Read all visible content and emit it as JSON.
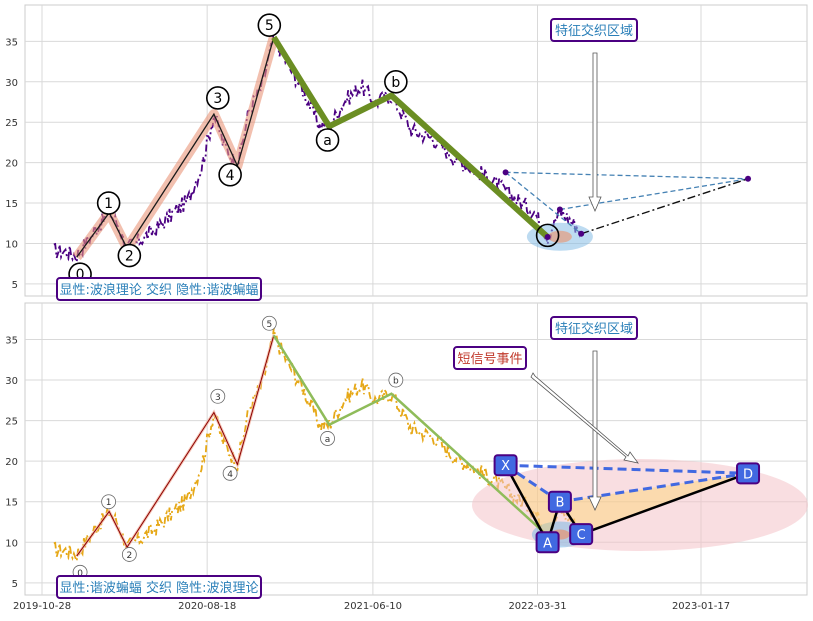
{
  "chart_data": [
    {
      "type": "line",
      "panel": "top",
      "ylim": [
        3.5,
        39.5
      ],
      "y_ticks": [
        5,
        10,
        15,
        20,
        25,
        30,
        35
      ],
      "grid": true,
      "colors": {
        "price": "#4b0082",
        "impulse": "#e9967a",
        "corrective": "#6b8e23",
        "projection": "#4682b4"
      },
      "wave_labels": [
        {
          "label": "0",
          "date": "2020-01-04",
          "y": 6.2
        },
        {
          "label": "1",
          "date": "2020-02-24",
          "y": 15.0
        },
        {
          "label": "2",
          "date": "2020-04-01",
          "y": 8.5
        },
        {
          "label": "3",
          "date": "2020-09-06",
          "y": 28.0
        },
        {
          "label": "4",
          "date": "2020-09-28",
          "y": 18.5
        },
        {
          "label": "5",
          "date": "2020-12-07",
          "y": 37.0
        },
        {
          "label": "a",
          "date": "2021-03-21",
          "y": 22.8
        },
        {
          "label": "b",
          "date": "2021-07-21",
          "y": 30.0
        },
        {
          "label": "",
          "date": "2022-04-18",
          "y": 11.0
        }
      ],
      "impulse_path": [
        {
          "date": "2019-12-29",
          "y": 8.3
        },
        {
          "date": "2020-02-25",
          "y": 13.8
        },
        {
          "date": "2020-03-28",
          "y": 9.4
        },
        {
          "date": "2020-08-30",
          "y": 26.0
        },
        {
          "date": "2020-10-11",
          "y": 19.6
        },
        {
          "date": "2020-12-15",
          "y": 35.5
        }
      ],
      "corrective_path": [
        {
          "date": "2020-12-15",
          "y": 35.5
        },
        {
          "date": "2021-03-24",
          "y": 24.5
        },
        {
          "date": "2021-07-13",
          "y": 28.3
        },
        {
          "date": "2022-04-18",
          "y": 10.8
        }
      ],
      "price_series": {
        "dates": [
          "2019-11-18",
          "2019-12-09",
          "2019-12-29",
          "2020-01-29",
          "2020-02-25",
          "2020-03-12",
          "2020-03-28",
          "2020-04-24",
          "2020-05-21",
          "2020-06-19",
          "2020-07-14",
          "2020-08-08",
          "2020-08-30",
          "2020-09-15",
          "2020-10-11",
          "2020-11-01",
          "2020-11-24",
          "2020-12-15",
          "2021-01-10",
          "2021-02-05",
          "2021-03-07",
          "2021-03-24",
          "2021-04-19",
          "2021-05-20",
          "2021-06-14",
          "2021-07-13",
          "2021-08-18",
          "2021-09-25",
          "2021-11-03",
          "2021-12-13",
          "2022-01-14",
          "2022-02-20",
          "2022-03-25",
          "2022-04-18",
          "2022-05-10",
          "2022-05-30",
          "2022-06-17"
        ],
        "values": [
          9.1,
          9.0,
          8.5,
          11.5,
          13.8,
          12.3,
          9.4,
          10.6,
          11.9,
          13.8,
          15.3,
          19.5,
          26.0,
          22.5,
          19.6,
          26.5,
          29.5,
          35.5,
          32.0,
          29.0,
          24.5,
          24.5,
          27.5,
          29.5,
          27.5,
          28.3,
          24.0,
          23.0,
          20.5,
          19.0,
          17.5,
          15.5,
          14.0,
          10.8,
          14.0,
          12.8,
          11.5
        ]
      },
      "projection_points": [
        {
          "date": "2022-02-02",
          "y": 18.8
        },
        {
          "date": "2022-04-18",
          "y": 10.8
        },
        {
          "date": "2022-05-10",
          "y": 14.2
        },
        {
          "date": "2022-06-17",
          "y": 11.2
        },
        {
          "date": "2023-04-11",
          "y": 18.0
        }
      ],
      "annotations": {
        "zone": "特征交织区域",
        "legend": "显性:波浪理论 交织 隐性:谐波蝙蝠"
      }
    },
    {
      "type": "line",
      "panel": "bottom",
      "ylim": [
        3.5,
        39.5
      ],
      "y_ticks": [
        5,
        10,
        15,
        20,
        25,
        30,
        35
      ],
      "x_ticks": [
        "2019-10-28",
        "2020-08-18",
        "2021-06-10",
        "2022-03-31",
        "2023-01-17"
      ],
      "grid": true,
      "colors": {
        "price": "#e6a817",
        "impulse": "#8b0000",
        "corrective": "#8fbc5a",
        "harmonic": "#4169e1",
        "event_zone": "#f4c2c8"
      },
      "wave_labels": [
        {
          "label": "0",
          "date": "2020-01-04",
          "y": 6.3
        },
        {
          "label": "1",
          "date": "2020-02-24",
          "y": 15.0
        },
        {
          "label": "2",
          "date": "2020-04-01",
          "y": 8.5
        },
        {
          "label": "3",
          "date": "2020-09-06",
          "y": 28.0
        },
        {
          "label": "4",
          "date": "2020-09-28",
          "y": 18.5
        },
        {
          "label": "5",
          "date": "2020-12-07",
          "y": 37.0
        },
        {
          "label": "a",
          "date": "2021-03-21",
          "y": 22.8
        },
        {
          "label": "b",
          "date": "2021-07-21",
          "y": 30.0
        }
      ],
      "harmonic_points": [
        {
          "label": "X",
          "date": "2022-02-02",
          "y": 19.5
        },
        {
          "label": "A",
          "date": "2022-04-18",
          "y": 10.0
        },
        {
          "label": "B",
          "date": "2022-05-10",
          "y": 15.0
        },
        {
          "label": "C",
          "date": "2022-06-17",
          "y": 11.0
        },
        {
          "label": "D",
          "date": "2023-04-11",
          "y": 18.5
        }
      ],
      "annotations": {
        "zone": "特征交织区域",
        "event": "短信号事件",
        "legend": "显性:谐波蝙蝠 交织 隐性:波浪理论"
      }
    }
  ]
}
